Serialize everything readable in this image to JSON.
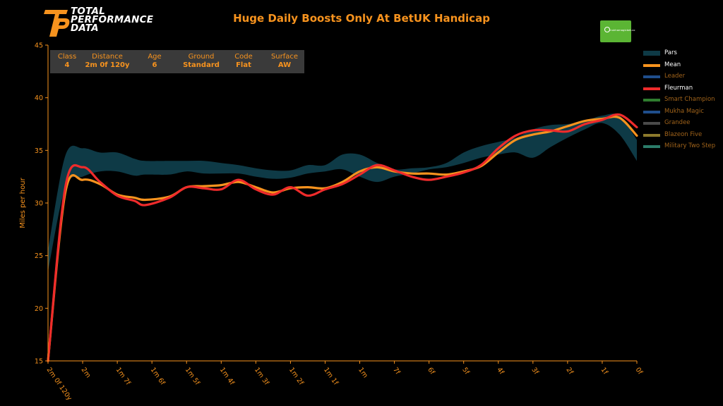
{
  "brand": {
    "logo_line1": "TOTAL",
    "logo_line2": "PERFORMANCE",
    "logo_line3": "DATA",
    "sponsor_text": "mukhamagicbet.co",
    "sponsor_color": "#5bb534"
  },
  "race": {
    "title": "Huge Daily Boosts Only At BetUK Handicap"
  },
  "info_box": [
    {
      "label": "Class",
      "value": "4"
    },
    {
      "label": "Distance",
      "value": "2m 0f 120y"
    },
    {
      "label": "Age",
      "value": "6"
    },
    {
      "label": "Ground",
      "value": "Standard"
    },
    {
      "label": "Code",
      "value": "Flat"
    },
    {
      "label": "Surface",
      "value": "AW"
    }
  ],
  "legend": [
    {
      "name": "Pars",
      "color": "#0e3a46",
      "active": true,
      "kind": "band"
    },
    {
      "name": "Mean",
      "color": "#f7931e",
      "active": true,
      "kind": "line"
    },
    {
      "name": "Leader",
      "color": "#1f4e8c",
      "active": false,
      "kind": "line"
    },
    {
      "name": "Fleurman",
      "color": "#ef2b2b",
      "active": true,
      "kind": "line"
    },
    {
      "name": "Smart Champion",
      "color": "#2f7d2f",
      "active": false,
      "kind": "line"
    },
    {
      "name": "Mukha Magic",
      "color": "#1f4e8c",
      "active": false,
      "kind": "line"
    },
    {
      "name": "Grandee",
      "color": "#4a4a4a",
      "active": false,
      "kind": "line"
    },
    {
      "name": "Blazeon Five",
      "color": "#8c7a2c",
      "active": false,
      "kind": "line"
    },
    {
      "name": "Military Two Step",
      "color": "#2c7d6a",
      "active": false,
      "kind": "line"
    }
  ],
  "chart_data": {
    "type": "line",
    "title": "Huge Daily Boosts Only At BetUK Handicap",
    "xlabel": "",
    "ylabel": "Miles per hour",
    "ylim": [
      15,
      45
    ],
    "yticks": [
      15,
      20,
      25,
      30,
      35,
      40,
      45
    ],
    "categories": [
      "2m 0f 120y",
      "2m",
      "1m 7f",
      "1m 6f",
      "1m 5f",
      "1m 4f",
      "1m 3f",
      "1m 2f",
      "1m 1f",
      "1m",
      "7f",
      "6f",
      "5f",
      "4f",
      "3f",
      "2f",
      "1f",
      "0f"
    ],
    "x": [
      0,
      0.5,
      1.0,
      1.5,
      2.0,
      2.5,
      2.8,
      3.5,
      4.0,
      4.5,
      5.0,
      5.5,
      6.0,
      6.5,
      7.0,
      7.5,
      8.0,
      8.5,
      9.0,
      9.5,
      10.0,
      10.5,
      11.0,
      11.5,
      12.0,
      12.5,
      13.0,
      13.5,
      14.0,
      14.5,
      15.0,
      15.5,
      16.0,
      16.5,
      17.0
    ],
    "pars_band": {
      "name": "Pars",
      "lower": [
        23.5,
        31.5,
        32.5,
        33.0,
        33.0,
        32.6,
        32.7,
        32.7,
        33.0,
        32.8,
        32.8,
        32.8,
        32.5,
        32.3,
        32.4,
        32.8,
        33.0,
        33.2,
        32.5,
        32.0,
        32.5,
        32.8,
        33.2,
        33.4,
        33.8,
        34.3,
        34.6,
        34.8,
        34.3,
        35.3,
        36.2,
        37.0,
        37.6,
        36.5,
        34.0
      ],
      "upper": [
        25.5,
        34.5,
        35.2,
        34.8,
        34.8,
        34.2,
        34.0,
        34.0,
        34.0,
        34.0,
        33.8,
        33.6,
        33.3,
        33.1,
        33.1,
        33.6,
        33.6,
        34.6,
        34.6,
        33.8,
        33.2,
        33.3,
        33.4,
        33.8,
        34.8,
        35.4,
        35.8,
        36.2,
        37.0,
        37.4,
        37.5,
        37.8,
        38.3,
        38.3,
        36.0
      ]
    },
    "series": [
      {
        "name": "Mean",
        "color": "#f7931e",
        "values": [
          15.0,
          31.0,
          32.2,
          31.8,
          30.8,
          30.5,
          30.3,
          30.6,
          31.5,
          31.6,
          31.7,
          32.0,
          31.5,
          31.0,
          31.4,
          31.5,
          31.4,
          32.0,
          33.0,
          33.4,
          33.0,
          32.8,
          32.8,
          32.7,
          33.0,
          33.5,
          34.8,
          36.0,
          36.5,
          36.8,
          37.3,
          37.8,
          38.0,
          38.1,
          36.4
        ]
      },
      {
        "name": "Fleurman",
        "color": "#ef2b2b",
        "values": [
          15.0,
          31.5,
          33.4,
          32.0,
          30.7,
          30.2,
          29.8,
          30.5,
          31.5,
          31.4,
          31.3,
          32.2,
          31.3,
          30.8,
          31.5,
          30.7,
          31.3,
          31.8,
          32.7,
          33.6,
          33.1,
          32.5,
          32.2,
          32.5,
          32.9,
          33.6,
          35.2,
          36.4,
          36.9,
          36.9,
          36.8,
          37.5,
          37.9,
          38.4,
          37.2
        ]
      }
    ],
    "grid": false,
    "legend_position": "right"
  }
}
